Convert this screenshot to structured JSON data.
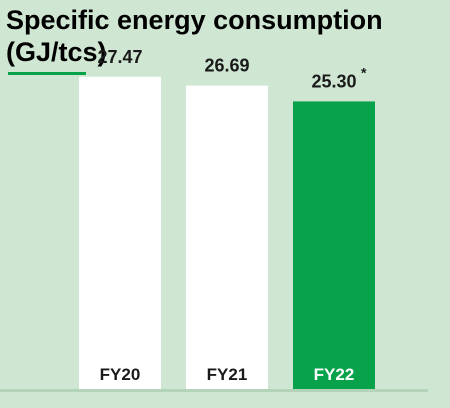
{
  "chart_data": {
    "type": "bar",
    "title_line1": "Specific energy consumption",
    "title_line2": "(GJ/tcs)",
    "categories": [
      "FY20",
      "FY21",
      "FY22"
    ],
    "values": [
      27.47,
      26.69,
      25.3
    ],
    "value_labels": [
      "27.47",
      "26.69",
      "25.30"
    ],
    "annotations": [
      "",
      "",
      "*"
    ],
    "ylim": [
      0,
      30
    ],
    "grid": false,
    "colors": {
      "background": "#cfe6d2",
      "bar_default": "#ffffff",
      "bar_highlight": "#07a24a",
      "label_on_default": "#1a1a1a",
      "label_on_highlight": "#ffffff",
      "baseline": "#b4d4b9",
      "accent_rule": "#07a24a"
    },
    "highlight_index": 2
  }
}
